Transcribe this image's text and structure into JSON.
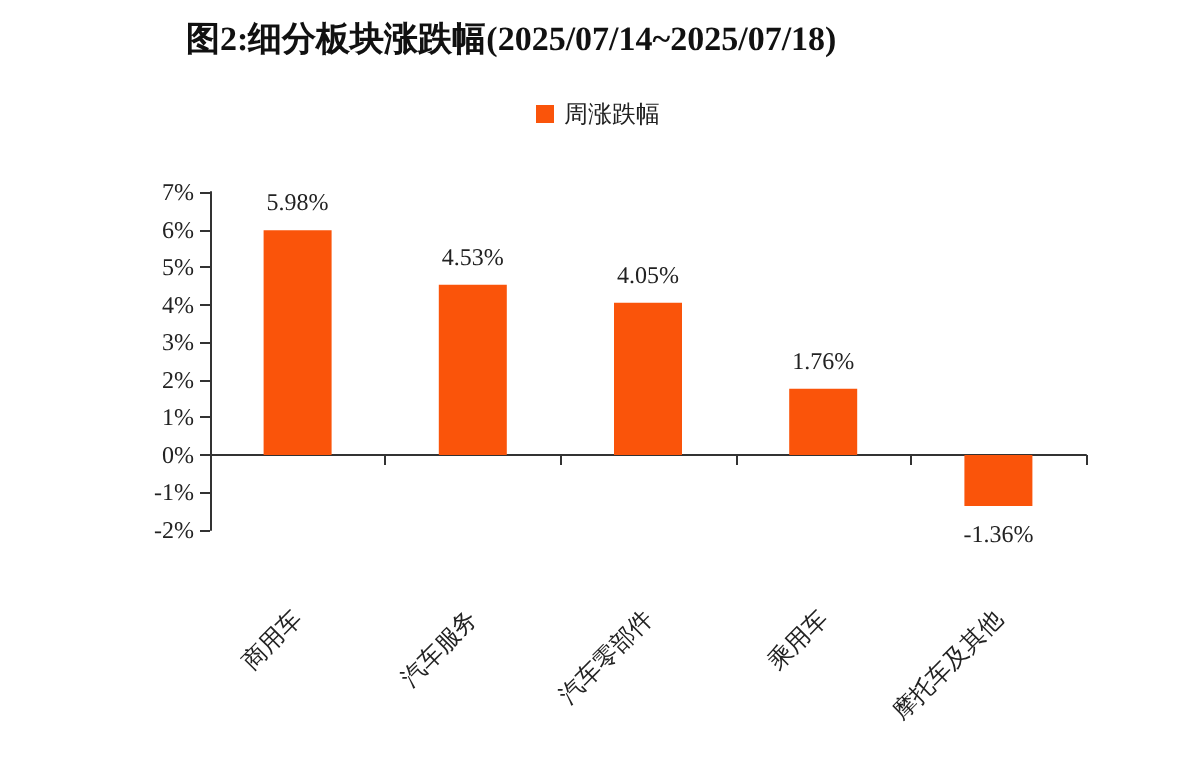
{
  "chart_data": {
    "type": "bar",
    "title": "图2:细分板块涨跌幅(2025/07/14~2025/07/18)",
    "categories": [
      "商用车",
      "汽车服务",
      "汽车零部件",
      "乘用车",
      "摩托车及其他"
    ],
    "series": [
      {
        "name": "周涨跌幅",
        "color": "#fa540a",
        "values": [
          5.98,
          4.53,
          4.05,
          1.76,
          -1.36
        ],
        "value_labels": [
          "5.98%",
          "4.53%",
          "4.05%",
          "1.76%",
          "-1.36%"
        ]
      }
    ],
    "ylim": [
      -2,
      7
    ],
    "yticks": [
      {
        "value": -2,
        "label": "-2%"
      },
      {
        "value": -1,
        "label": "-1%"
      },
      {
        "value": 0,
        "label": "0%"
      },
      {
        "value": 1,
        "label": "1%"
      },
      {
        "value": 2,
        "label": "2%"
      },
      {
        "value": 3,
        "label": "3%"
      },
      {
        "value": 4,
        "label": "4%"
      },
      {
        "value": 5,
        "label": "5%"
      },
      {
        "value": 6,
        "label": "6%"
      },
      {
        "value": 7,
        "label": "7%"
      }
    ],
    "legend": "top"
  }
}
